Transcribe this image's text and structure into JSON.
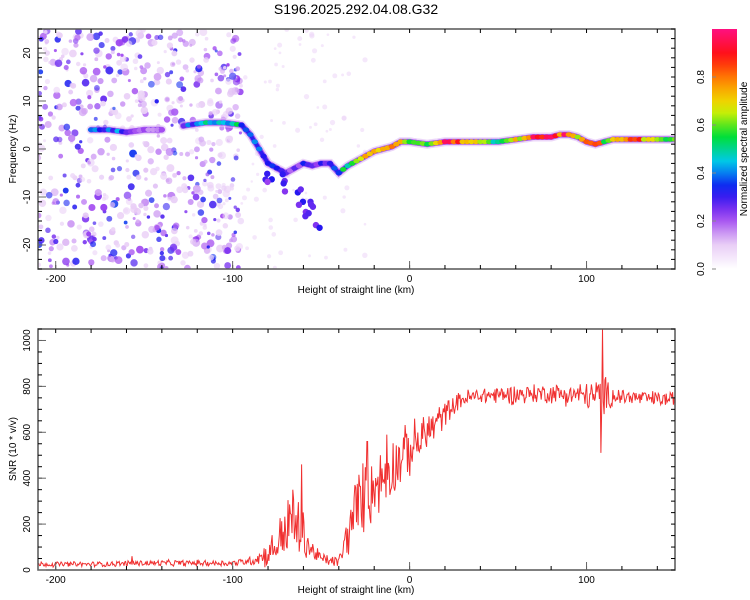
{
  "figure_title": "S196.2025.292.04.08.G32",
  "chart_data": [
    {
      "type": "heatmap",
      "name": "spectrogram",
      "title": "S196.2025.292.04.08.G32",
      "xlabel": "Height of straight line (km)",
      "ylabel": "Frequency (Hz)",
      "xlim": [
        -210,
        150
      ],
      "ylim": [
        -25,
        25
      ],
      "xticks": [
        -200,
        -100,
        0,
        100
      ],
      "xtick_labels": [
        "-200",
        "-100",
        "0",
        "100"
      ],
      "yticks": [
        -20,
        -10,
        0,
        10,
        20
      ],
      "ytick_labels": [
        "-20",
        "-10",
        "0",
        "10",
        "20"
      ],
      "colorbar": {
        "label": "Normalized spectral amplitude",
        "range": [
          0,
          1
        ],
        "ticks": [
          0.0,
          0.2,
          0.4,
          0.6,
          0.8
        ],
        "tick_labels": [
          "0.0",
          "0.2",
          "0.4",
          "0.6",
          "0.8"
        ],
        "colors": [
          "#ffffff",
          "#e6c8f5",
          "#9a3cf0",
          "#1010f0",
          "#00c8f0",
          "#00e030",
          "#e8f000",
          "#ff9000",
          "#ff1010",
          "#ff1080"
        ]
      },
      "ridge": {
        "x": [
          -180,
          -170,
          -160,
          -150,
          -140,
          -125,
          -115,
          -105,
          -95,
          -90,
          -85,
          -80,
          -75,
          -70,
          -65,
          -60,
          -55,
          -50,
          -45,
          -40,
          -35,
          -30,
          -25,
          -20,
          -15,
          -10,
          -5,
          0,
          10,
          20,
          30,
          40,
          50,
          60,
          70,
          80,
          85,
          90,
          95,
          100,
          105,
          110,
          115,
          120,
          130,
          140,
          150
        ],
        "y": [
          4,
          4,
          3.5,
          4,
          4,
          5,
          5.5,
          5.5,
          5,
          3,
          0,
          -3,
          -4,
          -5,
          -4,
          -3,
          -3.5,
          -3,
          -3,
          -5,
          -3.5,
          -2.5,
          -1.5,
          -0.5,
          0,
          0.5,
          1.5,
          1.5,
          1,
          1.5,
          1.5,
          1.5,
          1.5,
          2,
          2.5,
          2.5,
          3,
          3,
          2.5,
          1.5,
          1,
          1.5,
          2,
          2,
          2,
          2,
          2
        ],
        "amplitude": [
          0.3,
          0.35,
          0.3,
          0.15,
          0.1,
          0.35,
          0.45,
          0.45,
          0.4,
          0.4,
          0.3,
          0.3,
          0.3,
          0.3,
          0.25,
          0.25,
          0.25,
          0.3,
          0.3,
          0.45,
          0.55,
          0.6,
          0.7,
          0.75,
          0.7,
          0.8,
          0.75,
          0.6,
          0.6,
          0.9,
          0.8,
          0.6,
          0.55,
          0.7,
          0.9,
          0.85,
          0.9,
          0.85,
          0.6,
          0.75,
          0.8,
          0.6,
          0.7,
          0.85,
          0.8,
          0.6,
          0.55
        ]
      },
      "secondary_branch": {
        "x": [
          -80,
          -70,
          -62,
          -58,
          -55
        ],
        "y": [
          -5,
          -7,
          -10,
          -13,
          -14.5
        ]
      },
      "noise_region_x": [
        -210,
        -95
      ]
    },
    {
      "type": "line",
      "name": "snr",
      "xlabel": "Height of straight line (km)",
      "ylabel": "SNR (10 * v/v)",
      "xlim": [
        -210,
        150
      ],
      "ylim": [
        0,
        1050
      ],
      "xticks": [
        -200,
        -100,
        0,
        100
      ],
      "xtick_labels": [
        "-200",
        "-100",
        "0",
        "100"
      ],
      "yticks": [
        0,
        200,
        400,
        600,
        800,
        1000
      ],
      "ytick_labels": [
        "0",
        "200",
        "400",
        "600",
        "800",
        "1000"
      ],
      "color": "#f03030",
      "envelope": {
        "x": [
          -210,
          -180,
          -150,
          -120,
          -100,
          -90,
          -80,
          -75,
          -70,
          -65,
          -60,
          -55,
          -50,
          -45,
          -40,
          -35,
          -30,
          -25,
          -20,
          -15,
          -10,
          -5,
          0,
          5,
          10,
          15,
          20,
          25,
          30,
          40,
          60,
          80,
          100,
          105,
          110,
          115,
          120,
          130,
          140,
          150
        ],
        "mean": [
          25,
          25,
          30,
          30,
          30,
          40,
          70,
          110,
          180,
          200,
          150,
          80,
          50,
          40,
          35,
          150,
          280,
          320,
          360,
          400,
          450,
          490,
          520,
          560,
          600,
          640,
          680,
          720,
          745,
          760,
          765,
          770,
          760,
          755,
          760,
          760,
          755,
          750,
          745,
          745
        ],
        "spread": [
          12,
          12,
          14,
          14,
          14,
          20,
          60,
          90,
          140,
          160,
          110,
          50,
          30,
          25,
          25,
          100,
          160,
          160,
          150,
          140,
          140,
          130,
          120,
          110,
          100,
          80,
          60,
          40,
          40,
          40,
          45,
          45,
          60,
          80,
          90,
          50,
          40,
          35,
          35,
          35
        ]
      },
      "spikes": [
        {
          "x": -157,
          "y": 60
        },
        {
          "x": -66,
          "y": 350
        },
        {
          "x": -61,
          "y": 460
        },
        {
          "x": -24,
          "y": 560
        },
        {
          "x": -13,
          "y": 590
        },
        {
          "x": 109,
          "y": 1050
        },
        {
          "x": 108,
          "y": 510
        }
      ]
    }
  ]
}
